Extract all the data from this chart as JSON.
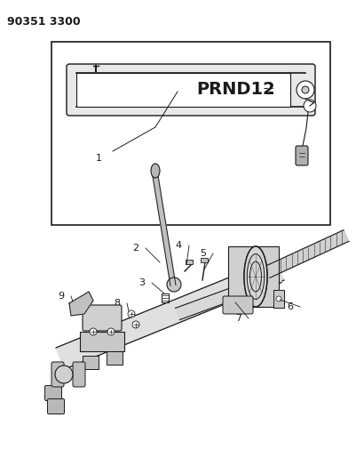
{
  "title_text": "90351 3300",
  "background_color": "#ffffff",
  "line_color": "#1a1a1a",
  "figure_width": 4.01,
  "figure_height": 5.33,
  "dpi": 100
}
